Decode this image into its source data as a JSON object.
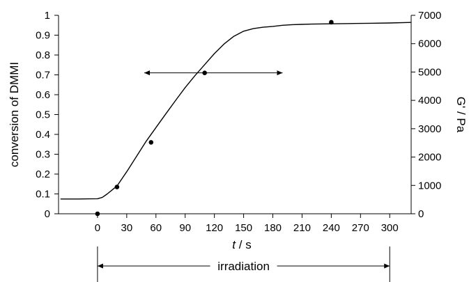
{
  "chart_data": {
    "type": "line",
    "title": "",
    "x": {
      "label_var": "t",
      "label_unit": " / s",
      "lim": [
        -40,
        322
      ],
      "ticks": [
        0,
        30,
        60,
        90,
        120,
        150,
        180,
        210,
        240,
        270,
        300
      ],
      "tick_labels": [
        "0",
        "30",
        "60",
        "90",
        "120",
        "150",
        "180",
        "210",
        "240",
        "270",
        "300"
      ]
    },
    "y_left": {
      "label": "conversion of DMMI",
      "lim": [
        0,
        1
      ],
      "ticks": [
        0,
        0.1,
        0.2,
        0.3,
        0.4,
        0.5,
        0.6,
        0.7,
        0.8,
        0.9,
        1
      ],
      "tick_labels": [
        "0",
        "0.1",
        "0.2",
        "0.3",
        "0.4",
        "0.5",
        "0.6",
        "0.7",
        "0.8",
        "0.9",
        "1"
      ]
    },
    "y_right": {
      "label": "G' / Pa",
      "lim": [
        0,
        7000
      ],
      "ticks": [
        0,
        1000,
        2000,
        3000,
        4000,
        5000,
        6000,
        7000
      ],
      "tick_labels": [
        "0",
        "1000",
        "2000",
        "3000",
        "4000",
        "5000",
        "6000",
        "7000"
      ]
    },
    "series": [
      {
        "axis": "right",
        "style": "line",
        "color": "#000000",
        "x": [
          -38,
          -20,
          0,
          5,
          10,
          15,
          20,
          30,
          40,
          50,
          60,
          70,
          80,
          90,
          100,
          110,
          120,
          130,
          140,
          150,
          160,
          170,
          180,
          190,
          200,
          210,
          220,
          240,
          260,
          280,
          300,
          322
        ],
        "y": [
          520,
          520,
          530,
          580,
          700,
          840,
          980,
          1480,
          2020,
          2560,
          3040,
          3520,
          3990,
          4450,
          4870,
          5260,
          5650,
          5990,
          6260,
          6440,
          6530,
          6580,
          6610,
          6650,
          6670,
          6680,
          6690,
          6700,
          6710,
          6720,
          6730,
          6750
        ]
      },
      {
        "axis": "left",
        "style": "markers",
        "color": "#000000",
        "x": [
          0,
          20,
          55,
          110,
          240
        ],
        "y": [
          0,
          0.135,
          0.36,
          0.71,
          0.965
        ]
      }
    ],
    "annotation": {
      "arrow_at": {
        "x": 110,
        "y": 0.71
      },
      "arrow_left_to_x": 48,
      "arrow_right_to_x": 190,
      "bracket_from_x": 0,
      "bracket_to_x": 300,
      "bracket_label": "irradiation"
    }
  }
}
